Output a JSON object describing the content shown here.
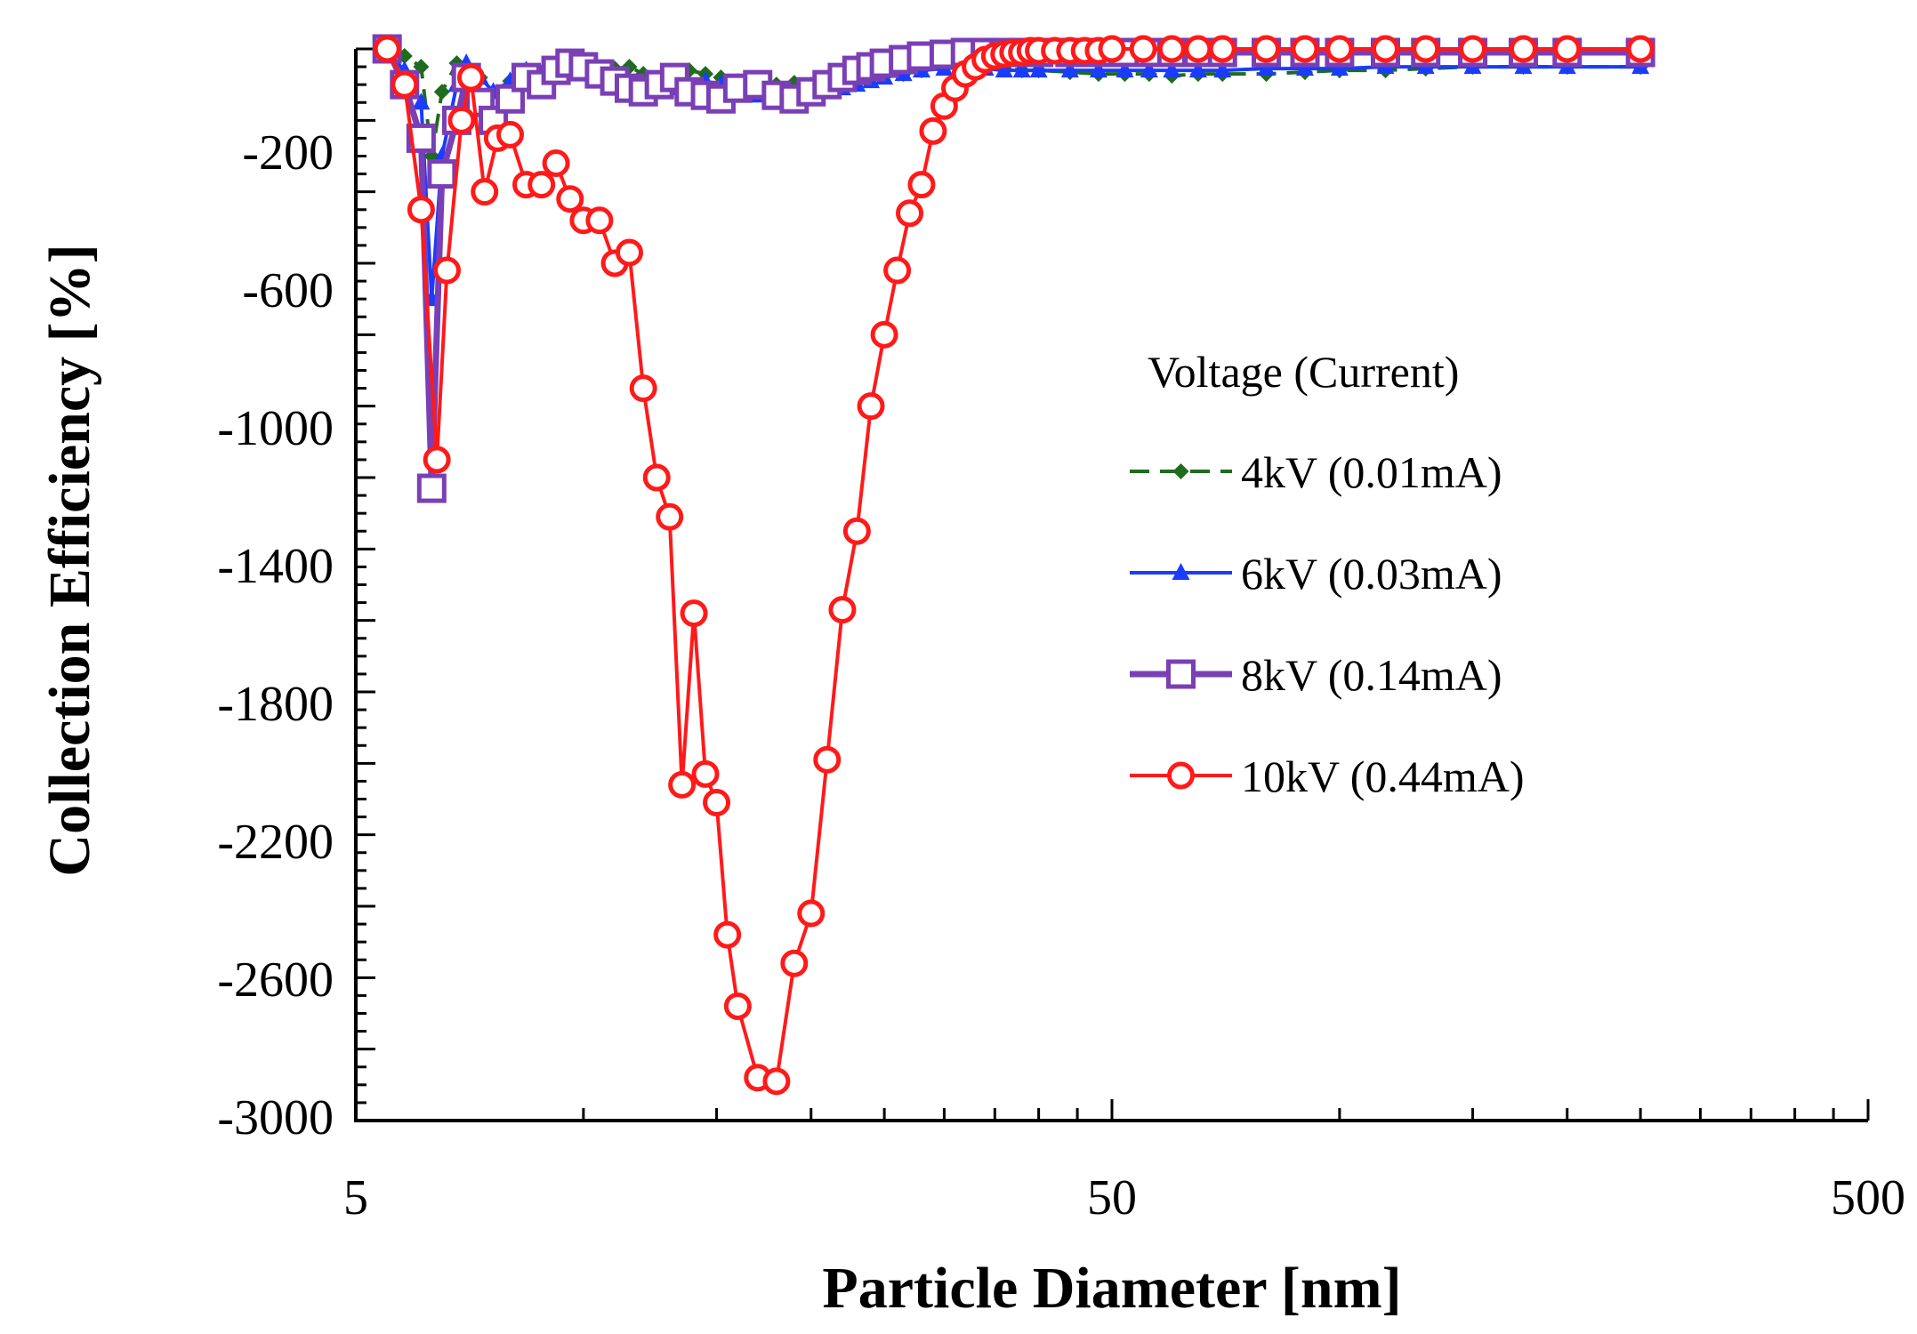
{
  "chart_data": {
    "type": "line",
    "title": "",
    "xlabel": "Particle Diameter [nm]",
    "ylabel": "Collection Efficiency [%]",
    "xscale": "log",
    "xlim": [
      5,
      500
    ],
    "ylim": [
      -3000,
      0
    ],
    "x_ticks": [
      "5",
      "50",
      "500"
    ],
    "y_ticks": [
      "-200",
      "-600",
      "-1000",
      "-1400",
      "-1800",
      "-2200",
      "-2600",
      "-3000"
    ],
    "legend": {
      "title": "Voltage (Current)",
      "placement": "right-middle"
    },
    "colors": {
      "axis": "#000000",
      "4kV": "#1f6b1f",
      "6kV": "#1a3cff",
      "8kV": "#7a3fb5",
      "10kV": "#ff1a1a"
    },
    "series": [
      {
        "name": "4kV (0.01mA)",
        "color": "#1f6b1f",
        "marker": "diamond",
        "dash": "dashed",
        "x": [
          5.5,
          5.8,
          6.1,
          6.3,
          6.5,
          6.8,
          7.0,
          7.3,
          7.6,
          8.0,
          8.4,
          8.8,
          9.2,
          9.6,
          10.0,
          10.5,
          11.0,
          11.5,
          12.0,
          12.6,
          13.2,
          13.8,
          14.5,
          15.2,
          16.0,
          17.0,
          18.0,
          19.0,
          20.0,
          21.0,
          22.0,
          23.0,
          24.0,
          25.0,
          26.5,
          28.0,
          30.0,
          32.0,
          34.0,
          36.0,
          38.0,
          40.0,
          44.0,
          48.0,
          52.0,
          56.0,
          60.0,
          65.0,
          70.0,
          80.0,
          90.0,
          100.0,
          115.0,
          130.0,
          150.0,
          175.0,
          200.0,
          250.0
        ],
        "values": [
          -5,
          -20,
          -50,
          -300,
          -120,
          -40,
          -50,
          -80,
          -120,
          -90,
          -60,
          -70,
          -80,
          -70,
          -60,
          -65,
          -55,
          -50,
          -70,
          -90,
          -100,
          -60,
          -70,
          -80,
          -90,
          -110,
          -100,
          -95,
          -100,
          -95,
          -90,
          -85,
          -80,
          -75,
          -70,
          -60,
          -50,
          -45,
          -50,
          -55,
          -60,
          -60,
          -65,
          -70,
          -70,
          -70,
          -75,
          -70,
          -70,
          -70,
          -65,
          -60,
          -60,
          -55,
          -50,
          -50,
          -50,
          -50
        ]
      },
      {
        "name": "6kV (0.03mA)",
        "color": "#1a3cff",
        "marker": "triangle",
        "dash": "solid",
        "x": [
          5.5,
          5.8,
          6.1,
          6.3,
          6.5,
          6.8,
          7.0,
          7.3,
          7.6,
          8.0,
          8.4,
          8.8,
          9.2,
          9.6,
          10.0,
          10.5,
          11.0,
          11.5,
          12.0,
          12.6,
          13.2,
          13.8,
          14.5,
          15.2,
          16.0,
          17.0,
          18.0,
          19.0,
          20.0,
          21.0,
          22.0,
          23.0,
          24.0,
          25.0,
          26.5,
          28.0,
          30.0,
          32.0,
          34.0,
          36.0,
          38.0,
          40.0,
          44.0,
          48.0,
          52.0,
          56.0,
          60.0,
          65.0,
          70.0,
          80.0,
          90.0,
          100.0,
          115.0,
          130.0,
          150.0,
          175.0,
          200.0,
          250.0
        ],
        "values": [
          -10,
          -60,
          -150,
          -700,
          -300,
          -100,
          -40,
          -80,
          -120,
          -90,
          -60,
          -70,
          -80,
          -70,
          -60,
          -65,
          -80,
          -100,
          -130,
          -120,
          -110,
          -100,
          -90,
          -100,
          -120,
          -130,
          -140,
          -135,
          -130,
          -120,
          -110,
          -100,
          -90,
          -80,
          -70,
          -60,
          -55,
          -50,
          -55,
          -60,
          -60,
          -60,
          -60,
          -60,
          -60,
          -60,
          -60,
          -60,
          -60,
          -55,
          -55,
          -55,
          -50,
          -50,
          -50,
          -50,
          -50,
          -50
        ]
      },
      {
        "name": "8kV (0.14mA)",
        "color": "#7a3fb5",
        "marker": "square",
        "dash": "solid",
        "x": [
          5.5,
          5.8,
          6.1,
          6.3,
          6.5,
          6.8,
          7.0,
          7.3,
          7.6,
          8.0,
          8.4,
          8.8,
          9.2,
          9.6,
          10.0,
          10.5,
          11.0,
          11.5,
          12.0,
          12.6,
          13.2,
          13.8,
          14.5,
          15.2,
          16.0,
          17.0,
          18.0,
          19.0,
          20.0,
          21.0,
          22.0,
          23.0,
          24.0,
          25.0,
          26.5,
          28.0,
          30.0,
          32.0,
          34.0,
          36.0,
          38.0,
          40.0,
          44.0,
          48.0,
          52.0,
          56.0,
          60.0,
          65.0,
          70.0,
          80.0,
          90.0,
          100.0,
          115.0,
          130.0,
          150.0,
          175.0,
          200.0,
          250.0
        ],
        "values": [
          0,
          -100,
          -250,
          -1230,
          -350,
          -200,
          -80,
          -150,
          -200,
          -140,
          -80,
          -100,
          -60,
          -40,
          -50,
          -70,
          -90,
          -110,
          -120,
          -100,
          -80,
          -120,
          -130,
          -140,
          -110,
          -100,
          -130,
          -140,
          -120,
          -100,
          -80,
          -60,
          -50,
          -40,
          -30,
          -20,
          -15,
          -10,
          -10,
          -10,
          -10,
          -10,
          -10,
          -10,
          -10,
          -10,
          -10,
          -10,
          -10,
          -10,
          -10,
          -10,
          -10,
          -10,
          -10,
          -10,
          -10,
          -10
        ]
      },
      {
        "name": "10kV (0.44mA)",
        "color": "#ff1a1a",
        "marker": "circle",
        "dash": "solid",
        "x": [
          5.5,
          5.8,
          6.1,
          6.4,
          6.6,
          6.9,
          7.1,
          7.4,
          7.7,
          8.0,
          8.4,
          8.8,
          9.2,
          9.6,
          10.0,
          10.5,
          11.0,
          11.5,
          12.0,
          12.5,
          13.0,
          13.5,
          14.0,
          14.5,
          15.0,
          15.5,
          16.0,
          17.0,
          18.0,
          19.0,
          20.0,
          21.0,
          22.0,
          23.0,
          24.0,
          25.0,
          26.0,
          27.0,
          28.0,
          29.0,
          30.0,
          31.0,
          32.0,
          33.0,
          34.0,
          35.0,
          36.0,
          37.0,
          38.0,
          39.0,
          40.0,
          42.0,
          44.0,
          46.0,
          48.0,
          50.0,
          55.0,
          60.0,
          65.0,
          70.0,
          80.0,
          90.0,
          100.0,
          115.0,
          130.0,
          150.0,
          175.0,
          200.0,
          250.0
        ],
        "values": [
          0,
          -100,
          -450,
          -1150,
          -620,
          -200,
          -80,
          -400,
          -250,
          -240,
          -380,
          -380,
          -320,
          -420,
          -480,
          -480,
          -600,
          -570,
          -950,
          -1200,
          -1310,
          -2060,
          -1580,
          -2030,
          -2110,
          -2480,
          -2680,
          -2880,
          -2890,
          -2560,
          -2420,
          -1990,
          -1570,
          -1350,
          -1000,
          -800,
          -620,
          -460,
          -380,
          -230,
          -160,
          -110,
          -70,
          -50,
          -30,
          -20,
          -15,
          -10,
          -10,
          -5,
          -5,
          -5,
          -5,
          -5,
          -5,
          0,
          0,
          0,
          0,
          0,
          0,
          0,
          0,
          0,
          0,
          0,
          0,
          0,
          0
        ]
      }
    ]
  }
}
